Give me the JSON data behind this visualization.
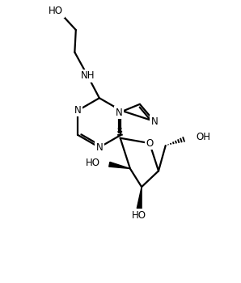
{
  "background_color": "#ffffff",
  "line_color": "#000000",
  "line_width": 1.6,
  "font_size": 8.5,
  "figsize": [
    2.98,
    3.5
  ],
  "dpi": 100,
  "xlim": [
    0,
    10
  ],
  "ylim": [
    0,
    12
  ]
}
